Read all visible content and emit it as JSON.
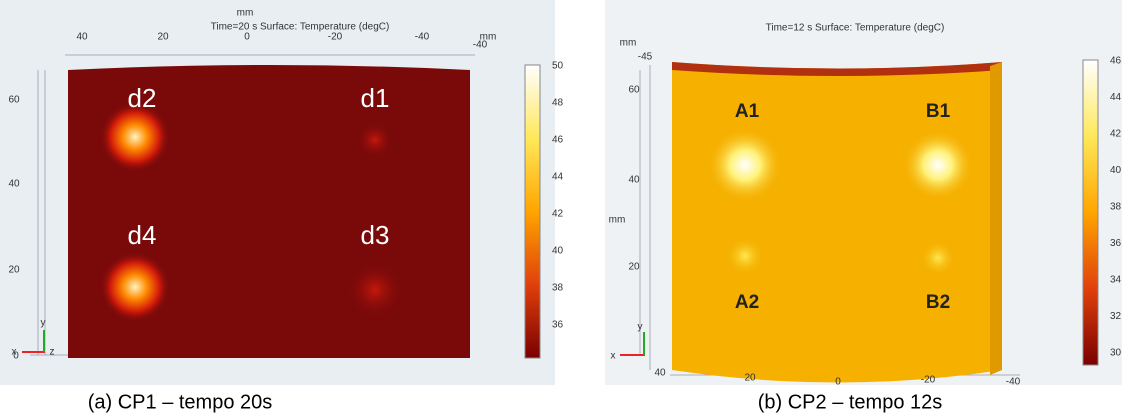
{
  "panels": [
    {
      "title": "Time=20 s   Surface: Temperature (degC)",
      "unit_top": "mm",
      "unit_right": "mm",
      "top_ticks": [
        "40",
        "20",
        "0",
        "-20",
        "-40",
        "-40"
      ],
      "left_ticks": [
        "60",
        "40",
        "20",
        "0"
      ],
      "spot_labels": [
        "d2",
        "d1",
        "d4",
        "d3"
      ],
      "colorbar_ticks": [
        50,
        48,
        46,
        44,
        42,
        40,
        38,
        36
      ],
      "axis_labels": [
        "y",
        "x",
        "z"
      ],
      "caption": "(a) CP1 – tempo 20s"
    },
    {
      "title": "Time=12 s   Surface: Temperature (degC)",
      "unit_top": "mm",
      "unit_left": "mm",
      "top_ticks": [
        "-45"
      ],
      "left_ticks": [
        "60",
        "40",
        "20"
      ],
      "bottom_ticks": [
        "40",
        "20",
        "0",
        "-20",
        "-40"
      ],
      "spot_labels": [
        "A1",
        "B1",
        "A2",
        "B2"
      ],
      "colorbar_ticks": [
        46,
        44,
        42,
        40,
        38,
        36,
        34,
        32,
        30
      ],
      "axis_labels": [
        "y",
        "x"
      ],
      "caption": "(b) CP2 – tempo 12s"
    }
  ]
}
